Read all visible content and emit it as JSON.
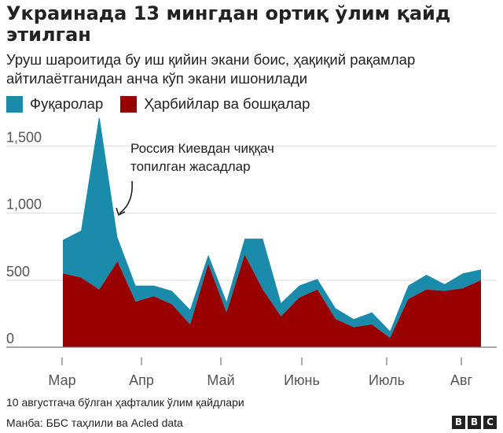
{
  "header": {
    "title": "Украинада 13 мингдан ортиқ ўлим қайд этилган",
    "subtitle": "Уруш шароитида бу иш қийин экани боис, ҳақиқий рақамлар айтилаётганидан анча кўп экани ишонилади"
  },
  "legend": {
    "civilians": "Фуқаролар",
    "military": "Ҳарбийлар ва бошқалар"
  },
  "colors": {
    "civilians": "#1b8bab",
    "military": "#990000",
    "grid": "#d9d9d9",
    "axis": "#777777"
  },
  "chart_data": {
    "type": "area",
    "stacked": true,
    "annotation": "Россия Киевдан чиққач топилган жасадлар",
    "x_tick_labels": [
      "Мар",
      "Апр",
      "Май",
      "Июнь",
      "Июль",
      "Авг"
    ],
    "y_ticks": [
      0,
      500,
      1000,
      1500
    ],
    "y_tick_labels": [
      "0",
      "500",
      "1,000",
      "1,500"
    ],
    "ylim": [
      0,
      1750
    ],
    "grid": "horizontal",
    "legend_position": "top-left",
    "weeks": 24,
    "series": [
      {
        "name": "Ҳарбийлар ва бошқалар",
        "values": [
          550,
          520,
          430,
          640,
          340,
          380,
          320,
          170,
          620,
          260,
          690,
          430,
          230,
          370,
          430,
          210,
          150,
          170,
          70,
          360,
          430,
          420,
          440,
          500
        ]
      },
      {
        "name": "Фуқаролар",
        "values": [
          250,
          350,
          1300,
          180,
          120,
          80,
          100,
          110,
          70,
          80,
          120,
          380,
          100,
          90,
          80,
          80,
          60,
          90,
          50,
          100,
          110,
          50,
          110,
          80
        ]
      }
    ],
    "totals": [
      800,
      870,
      1730,
      820,
      460,
      460,
      420,
      280,
      690,
      340,
      810,
      810,
      330,
      460,
      510,
      290,
      210,
      260,
      120,
      460,
      540,
      470,
      550,
      580
    ]
  },
  "footer": {
    "note": "10 августгача бўлган ҳафталик ўлим қайдлари",
    "source": "Манба: ББС таҳлили ва Acled data",
    "logo": [
      "B",
      "B",
      "C"
    ]
  }
}
